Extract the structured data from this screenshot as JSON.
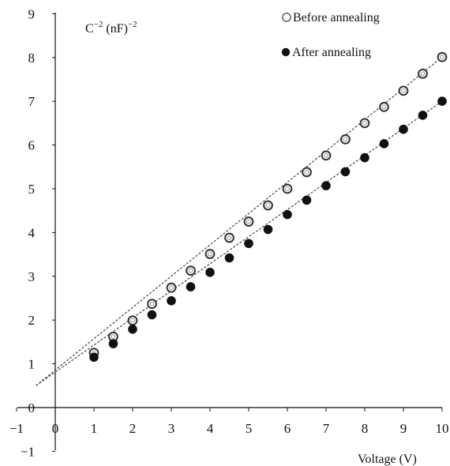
{
  "chart_data": {
    "type": "scatter",
    "title": "",
    "xlabel": "Voltage (V)",
    "ylabel": {
      "base": "C",
      "exp1": "−2",
      "mid": " (nF)",
      "exp2": "−2"
    },
    "xlim": [
      -1,
      10
    ],
    "ylim": [
      -1,
      9
    ],
    "xticks": [
      "−1",
      "0",
      "1",
      "2",
      "3",
      "4",
      "5",
      "6",
      "7",
      "8",
      "9",
      "10"
    ],
    "yticks": [
      "−1",
      "0",
      "1",
      "2",
      "3",
      "4",
      "5",
      "6",
      "7",
      "8",
      "9"
    ],
    "grid": false,
    "legend_position": "top-right",
    "series": [
      {
        "name": "Before annealing",
        "marker": "open-circle",
        "color": "#111111",
        "x": [
          1,
          1.5,
          2,
          2.5,
          3,
          3.5,
          4,
          4.5,
          5,
          5.5,
          6,
          6.5,
          7,
          7.5,
          8,
          8.5,
          9,
          9.5,
          10
        ],
        "y": [
          1.25,
          1.62,
          1.99,
          2.37,
          2.74,
          3.13,
          3.51,
          3.88,
          4.25,
          4.62,
          5.0,
          5.38,
          5.76,
          6.13,
          6.5,
          6.87,
          7.24,
          7.63,
          8.01
        ],
        "fit": {
          "x0": -0.5,
          "y0": 0.5,
          "x1": 10,
          "y1": 8.01
        }
      },
      {
        "name": "After annealing",
        "marker": "filled-circle",
        "color": "#111111",
        "x": [
          1,
          1.5,
          2,
          2.5,
          3,
          3.5,
          4,
          4.5,
          5,
          5.5,
          6,
          6.5,
          7,
          7.5,
          8,
          8.5,
          9,
          9.5,
          10
        ],
        "y": [
          1.15,
          1.46,
          1.79,
          2.12,
          2.44,
          2.76,
          3.09,
          3.42,
          3.75,
          4.07,
          4.41,
          4.74,
          5.07,
          5.39,
          5.71,
          6.03,
          6.36,
          6.68,
          7.0
        ],
        "fit": {
          "x0": -0.5,
          "y0": 0.5,
          "x1": 10,
          "y1": 7.0
        }
      }
    ]
  }
}
